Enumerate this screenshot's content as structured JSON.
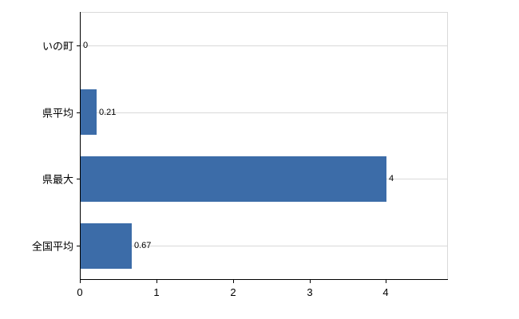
{
  "chart_data": {
    "type": "bar",
    "orientation": "horizontal",
    "title": "",
    "xlabel": "",
    "ylabel": "",
    "categories": [
      "いの町",
      "県平均",
      "県最大",
      "全国平均"
    ],
    "values": [
      0,
      0.21,
      4,
      0.67
    ],
    "value_labels": [
      "0",
      "0.21",
      "4",
      "0.67"
    ],
    "x_ticks": [
      0,
      1,
      2,
      3,
      4
    ],
    "x_tick_labels": [
      "0",
      "1",
      "2",
      "3",
      "4"
    ],
    "xlim": [
      0,
      4.8
    ],
    "grid": "horizontal category lines",
    "legend_position": "none",
    "colors": {
      "bar": "#3c6ca8",
      "axis": "#000000",
      "grid": "#d9d9d9",
      "plot_border": "#d9d9d9",
      "text": "#000000",
      "background": "#ffffff"
    }
  }
}
